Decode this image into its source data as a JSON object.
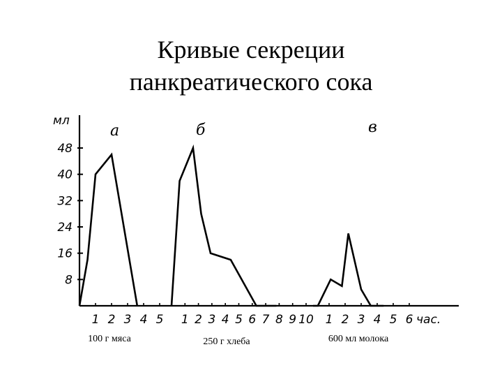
{
  "title_line1": "Кривые секреции",
  "title_line2": "панкреатического сока",
  "chart_data": {
    "type": "line",
    "ylabel": "мл",
    "yticks": [
      8,
      16,
      24,
      32,
      40,
      48
    ],
    "ytick_labels": [
      "8",
      "16",
      "24",
      "32",
      "40",
      "48"
    ],
    "ylim": [
      0,
      48
    ],
    "x_unit": "час.",
    "panels": [
      {
        "letter": "а",
        "caption": "100 г мяса",
        "x_tick_labels": [
          "1",
          "2",
          "3",
          "4",
          "5"
        ],
        "x": [
          0,
          0.5,
          1,
          2,
          3.6
        ],
        "y": [
          0,
          14,
          40,
          46,
          0
        ]
      },
      {
        "letter": "б",
        "caption": "250 г хлеба",
        "x_tick_labels": [
          "1",
          "2",
          "3",
          "4",
          "5",
          "6",
          "7",
          "8",
          "9",
          "10"
        ],
        "x": [
          0,
          0.6,
          1.6,
          2.2,
          2.9,
          4.4,
          6.3,
          6.8,
          7.8
        ],
        "y": [
          0,
          38,
          48,
          28,
          16,
          14,
          0,
          0,
          0
        ]
      },
      {
        "letter": "в",
        "caption": "600 мл молока",
        "x_tick_labels": [
          "1",
          "2",
          "3",
          "4",
          "5",
          "6"
        ],
        "x_tick_suffix": "час.",
        "x": [
          0,
          0.3,
          1.1,
          1.8,
          2.2,
          3.0,
          3.6,
          4.4
        ],
        "y": [
          0,
          0,
          8,
          6,
          22,
          5,
          0,
          0
        ]
      }
    ]
  }
}
